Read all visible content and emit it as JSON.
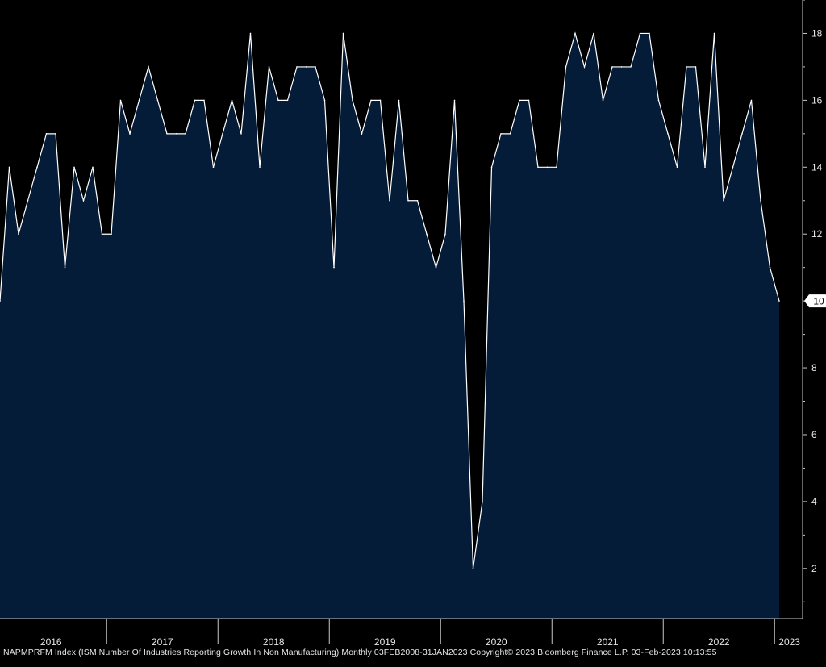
{
  "chart_data": {
    "type": "area",
    "title": "",
    "xlabel": "",
    "ylabel": "",
    "ylim": [
      0.5,
      19
    ],
    "yticks": [
      2,
      4,
      6,
      8,
      10,
      12,
      14,
      16,
      18
    ],
    "year_labels": [
      "2016",
      "2017",
      "2018",
      "2019",
      "2020",
      "2021",
      "2022",
      "2023"
    ],
    "last_value_label": "10",
    "grid": false,
    "legend": "none",
    "colors": {
      "background": "#000000",
      "fill": "#051c38",
      "line": "#ffffff",
      "axis": "#c8c8c8",
      "text": "#e6e6e6"
    },
    "series": [
      {
        "values": [
          {
            "x": "2016-01",
            "y": 10
          },
          {
            "x": "2016-02",
            "y": 14
          },
          {
            "x": "2016-03",
            "y": 12
          },
          {
            "x": "2016-04",
            "y": 13
          },
          {
            "x": "2016-05",
            "y": 14
          },
          {
            "x": "2016-06",
            "y": 15
          },
          {
            "x": "2016-07",
            "y": 15
          },
          {
            "x": "2016-08",
            "y": 11
          },
          {
            "x": "2016-09",
            "y": 14
          },
          {
            "x": "2016-10",
            "y": 13
          },
          {
            "x": "2016-11",
            "y": 14
          },
          {
            "x": "2016-12",
            "y": 12
          },
          {
            "x": "2017-01",
            "y": 12
          },
          {
            "x": "2017-02",
            "y": 16
          },
          {
            "x": "2017-03",
            "y": 15
          },
          {
            "x": "2017-04",
            "y": 16
          },
          {
            "x": "2017-05",
            "y": 17
          },
          {
            "x": "2017-06",
            "y": 16
          },
          {
            "x": "2017-07",
            "y": 15
          },
          {
            "x": "2017-08",
            "y": 15
          },
          {
            "x": "2017-09",
            "y": 15
          },
          {
            "x": "2017-10",
            "y": 16
          },
          {
            "x": "2017-11",
            "y": 16
          },
          {
            "x": "2017-12",
            "y": 14
          },
          {
            "x": "2018-01",
            "y": 15
          },
          {
            "x": "2018-02",
            "y": 16
          },
          {
            "x": "2018-03",
            "y": 15
          },
          {
            "x": "2018-04",
            "y": 18
          },
          {
            "x": "2018-05",
            "y": 14
          },
          {
            "x": "2018-06",
            "y": 17
          },
          {
            "x": "2018-07",
            "y": 16
          },
          {
            "x": "2018-08",
            "y": 16
          },
          {
            "x": "2018-09",
            "y": 17
          },
          {
            "x": "2018-10",
            "y": 17
          },
          {
            "x": "2018-11",
            "y": 17
          },
          {
            "x": "2018-12",
            "y": 16
          },
          {
            "x": "2019-01",
            "y": 11
          },
          {
            "x": "2019-02",
            "y": 18
          },
          {
            "x": "2019-03",
            "y": 16
          },
          {
            "x": "2019-04",
            "y": 15
          },
          {
            "x": "2019-05",
            "y": 16
          },
          {
            "x": "2019-06",
            "y": 16
          },
          {
            "x": "2019-07",
            "y": 13
          },
          {
            "x": "2019-08",
            "y": 16
          },
          {
            "x": "2019-09",
            "y": 13
          },
          {
            "x": "2019-10",
            "y": 13
          },
          {
            "x": "2019-11",
            "y": 12
          },
          {
            "x": "2019-12",
            "y": 11
          },
          {
            "x": "2020-01",
            "y": 12
          },
          {
            "x": "2020-02",
            "y": 16
          },
          {
            "x": "2020-03",
            "y": 10
          },
          {
            "x": "2020-04",
            "y": 2
          },
          {
            "x": "2020-05",
            "y": 4
          },
          {
            "x": "2020-06",
            "y": 14
          },
          {
            "x": "2020-07",
            "y": 15
          },
          {
            "x": "2020-08",
            "y": 15
          },
          {
            "x": "2020-09",
            "y": 16
          },
          {
            "x": "2020-10",
            "y": 16
          },
          {
            "x": "2020-11",
            "y": 14
          },
          {
            "x": "2020-12",
            "y": 14
          },
          {
            "x": "2021-01",
            "y": 14
          },
          {
            "x": "2021-02",
            "y": 17
          },
          {
            "x": "2021-03",
            "y": 18
          },
          {
            "x": "2021-04",
            "y": 17
          },
          {
            "x": "2021-05",
            "y": 18
          },
          {
            "x": "2021-06",
            "y": 16
          },
          {
            "x": "2021-07",
            "y": 17
          },
          {
            "x": "2021-08",
            "y": 17
          },
          {
            "x": "2021-09",
            "y": 17
          },
          {
            "x": "2021-10",
            "y": 18
          },
          {
            "x": "2021-11",
            "y": 18
          },
          {
            "x": "2021-12",
            "y": 16
          },
          {
            "x": "2022-01",
            "y": 15
          },
          {
            "x": "2022-02",
            "y": 14
          },
          {
            "x": "2022-03",
            "y": 17
          },
          {
            "x": "2022-04",
            "y": 17
          },
          {
            "x": "2022-05",
            "y": 14
          },
          {
            "x": "2022-06",
            "y": 18
          },
          {
            "x": "2022-07",
            "y": 13
          },
          {
            "x": "2022-08",
            "y": 14
          },
          {
            "x": "2022-09",
            "y": 15
          },
          {
            "x": "2022-10",
            "y": 16
          },
          {
            "x": "2022-11",
            "y": 13
          },
          {
            "x": "2022-12",
            "y": 11
          },
          {
            "x": "2023-01",
            "y": 10
          }
        ]
      }
    ]
  },
  "footer": {
    "text": "NAPMPRFM Index (ISM Number Of Industries Reporting Growth In Non Manufacturing)  Monthly 03FEB2008-31JAN2023   Copyright© 2023 Bloomberg Finance L.P.   03-Feb-2023 10:13:55"
  }
}
